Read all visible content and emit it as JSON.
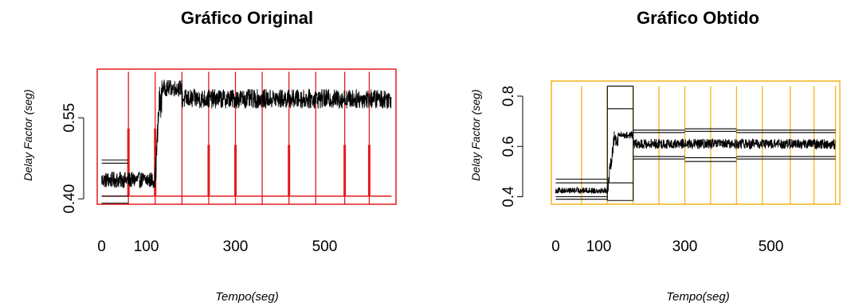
{
  "chart_data": [
    {
      "type": "line",
      "title": "Gráfico Original",
      "xlabel": "Tempo(seg)",
      "ylabel": "Delay Factor (seg)",
      "xlim": [
        -10,
        660
      ],
      "ylim": [
        0.39,
        0.64
      ],
      "x_ticks": [
        0,
        100,
        300,
        500
      ],
      "x_tick_labels": [
        "0",
        "100",
        "300",
        "500"
      ],
      "y_ticks": [
        0.4,
        0.55
      ],
      "y_tick_labels": [
        "0.40",
        "0.55"
      ],
      "frame_color": "#e31a1c",
      "series_color": "#000000",
      "signal_segments": [
        {
          "x_start": 0,
          "x_end": 120,
          "level": 0.435,
          "noise": 0.015
        },
        {
          "x_start": 120,
          "x_end": 135,
          "level": 0.58,
          "noise": 0.03
        },
        {
          "x_start": 135,
          "x_end": 180,
          "level": 0.605,
          "noise": 0.015
        },
        {
          "x_start": 180,
          "x_end": 650,
          "level": 0.585,
          "noise": 0.018
        }
      ],
      "band_lines": [
        {
          "x_start": 0,
          "x_end": 60,
          "value": 0.472
        },
        {
          "x_start": 0,
          "x_end": 60,
          "value": 0.466
        },
        {
          "x_start": 0,
          "x_end": 60,
          "value": 0.405
        },
        {
          "x_start": 0,
          "x_end": 60,
          "value": 0.392
        }
      ],
      "baseline": {
        "x_start": 0,
        "x_end": 650,
        "value": 0.405
      },
      "change_points": [
        60,
        120,
        180,
        240,
        300,
        360,
        420,
        480,
        545,
        600
      ],
      "change_point_tops": [
        0.635,
        0.635,
        0.635,
        0.635,
        0.635,
        0.635,
        0.635,
        0.635,
        0.635,
        0.635
      ],
      "change_point_markers": [
        {
          "x": 60,
          "from": 0.405,
          "to": 0.53
        },
        {
          "x": 120,
          "from": 0.405,
          "to": 0.53
        },
        {
          "x": 240,
          "from": 0.405,
          "to": 0.5
        },
        {
          "x": 300,
          "from": 0.405,
          "to": 0.5
        },
        {
          "x": 420,
          "from": 0.405,
          "to": 0.5
        },
        {
          "x": 545,
          "from": 0.405,
          "to": 0.5
        },
        {
          "x": 600,
          "from": 0.405,
          "to": 0.5
        }
      ]
    },
    {
      "type": "line",
      "title": "Gráfico Obtido",
      "xlabel": "Tempo(seg)",
      "ylabel": "Delay Factor (seg)",
      "xlim": [
        -10,
        660
      ],
      "ylim": [
        0.37,
        0.86
      ],
      "x_ticks": [
        0,
        100,
        300,
        500
      ],
      "x_tick_labels": [
        "0",
        "100",
        "300",
        "500"
      ],
      "y_ticks": [
        0.4,
        0.6,
        0.8
      ],
      "y_tick_labels": [
        "0.4",
        "0.6",
        "0.8"
      ],
      "frame_color": "#f5b41c",
      "series_color": "#000000",
      "signal_segments": [
        {
          "x_start": 0,
          "x_end": 120,
          "level": 0.425,
          "noise": 0.012
        },
        {
          "x_start": 120,
          "x_end": 145,
          "level": 0.63,
          "noise": 0.03
        },
        {
          "x_start": 145,
          "x_end": 180,
          "level": 0.645,
          "noise": 0.015
        },
        {
          "x_start": 180,
          "x_end": 650,
          "level": 0.61,
          "noise": 0.02
        }
      ],
      "band_lines": [
        {
          "x_start": 0,
          "x_end": 120,
          "value": 0.47
        },
        {
          "x_start": 0,
          "x_end": 120,
          "value": 0.455
        },
        {
          "x_start": 0,
          "x_end": 120,
          "value": 0.4
        },
        {
          "x_start": 0,
          "x_end": 120,
          "value": 0.39
        },
        {
          "x_start": 120,
          "x_end": 180,
          "value": 0.84
        },
        {
          "x_start": 120,
          "x_end": 180,
          "value": 0.75
        },
        {
          "x_start": 120,
          "x_end": 180,
          "value": 0.455
        },
        {
          "x_start": 120,
          "x_end": 180,
          "value": 0.385
        },
        {
          "x_start": 180,
          "x_end": 300,
          "value": 0.665
        },
        {
          "x_start": 180,
          "x_end": 300,
          "value": 0.655
        },
        {
          "x_start": 180,
          "x_end": 300,
          "value": 0.56
        },
        {
          "x_start": 180,
          "x_end": 300,
          "value": 0.55
        },
        {
          "x_start": 300,
          "x_end": 420,
          "value": 0.67
        },
        {
          "x_start": 300,
          "x_end": 420,
          "value": 0.66
        },
        {
          "x_start": 300,
          "x_end": 420,
          "value": 0.555
        },
        {
          "x_start": 300,
          "x_end": 420,
          "value": 0.54
        },
        {
          "x_start": 420,
          "x_end": 650,
          "value": 0.665
        },
        {
          "x_start": 420,
          "x_end": 650,
          "value": 0.655
        },
        {
          "x_start": 420,
          "x_end": 650,
          "value": 0.56
        },
        {
          "x_start": 420,
          "x_end": 650,
          "value": 0.55
        }
      ],
      "vertical_guides": [
        {
          "x": 120,
          "from": 0.385,
          "to": 0.84
        },
        {
          "x": 180,
          "from": 0.385,
          "to": 0.84
        }
      ],
      "change_points": [
        60,
        120,
        180,
        240,
        300,
        360,
        420,
        480,
        545,
        600,
        650
      ],
      "change_point_tops": [
        0.84,
        0.84,
        0.84,
        0.84,
        0.84,
        0.84,
        0.84,
        0.84,
        0.84,
        0.84,
        0.84
      ]
    }
  ]
}
